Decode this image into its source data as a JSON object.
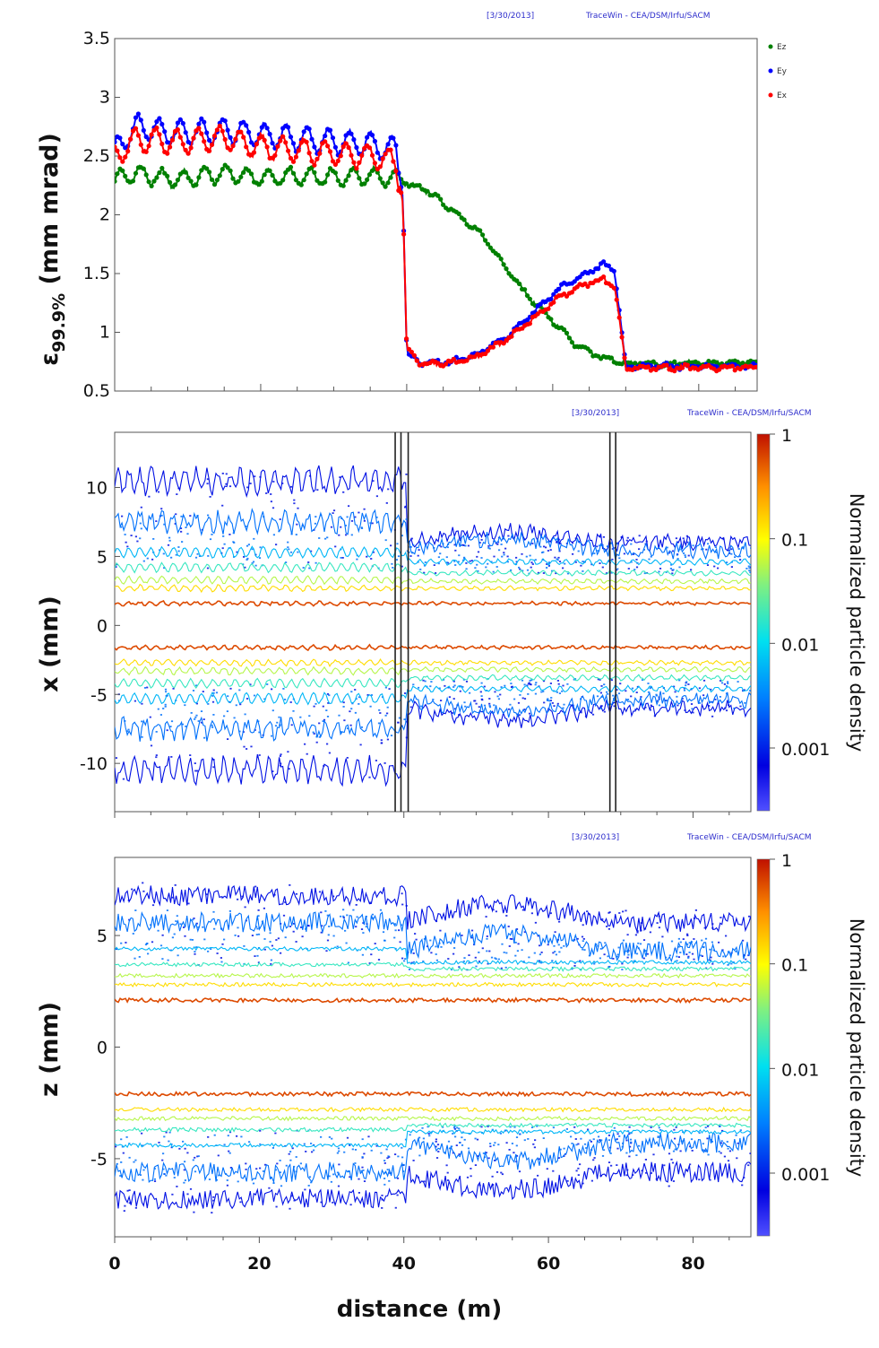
{
  "chart_data": [
    {
      "type": "scatter",
      "header_date": "[3/30/2013]",
      "header_source": "TraceWin - CEA/DSM/Irfu/SACM",
      "ylabel_main": "ε",
      "ylabel_sub": "99.9%",
      "ylabel_unit": " (mm mrad)",
      "ylim": [
        0.5,
        3.5
      ],
      "xlim": [
        0,
        88
      ],
      "yticks": [
        "3.5",
        "3",
        "2.5",
        "2",
        "1.5",
        "1",
        "0.5"
      ],
      "legend": [
        "Ez",
        "Ey",
        "Ex"
      ],
      "legend_placement": "top-right",
      "series": [
        {
          "name": "Ez",
          "color": "#008000",
          "x": [
            0,
            3,
            8,
            15,
            20,
            25,
            30,
            35,
            39,
            40,
            43,
            46,
            50,
            53,
            56,
            60,
            63,
            66,
            70,
            75,
            80,
            88
          ],
          "y": [
            2.3,
            2.35,
            2.3,
            2.35,
            2.32,
            2.33,
            2.32,
            2.33,
            2.3,
            2.27,
            2.2,
            2.05,
            1.85,
            1.6,
            1.35,
            1.1,
            0.9,
            0.8,
            0.74,
            0.73,
            0.74,
            0.74
          ]
        },
        {
          "name": "Ey",
          "color": "#0000ff",
          "x": [
            0,
            3,
            8,
            15,
            20,
            25,
            30,
            35,
            38.5,
            39.5,
            40,
            42,
            46,
            50,
            54,
            58,
            61,
            64,
            67,
            68,
            68.5,
            70,
            75,
            80,
            88
          ],
          "y": [
            2.55,
            2.75,
            2.7,
            2.72,
            2.68,
            2.65,
            2.62,
            2.6,
            2.55,
            2.15,
            0.82,
            0.74,
            0.75,
            0.82,
            0.98,
            1.2,
            1.38,
            1.48,
            1.58,
            1.55,
            1.52,
            0.71,
            0.71,
            0.71,
            0.71
          ]
        },
        {
          "name": "Ex",
          "color": "#ff0000",
          "x": [
            0,
            3,
            8,
            15,
            20,
            25,
            30,
            35,
            38.5,
            39.5,
            40,
            42,
            46,
            50,
            54,
            58,
            61,
            64,
            67,
            68,
            68.5,
            70,
            75,
            80,
            88
          ],
          "y": [
            2.5,
            2.65,
            2.62,
            2.65,
            2.58,
            2.55,
            2.52,
            2.5,
            2.45,
            2.1,
            0.85,
            0.73,
            0.74,
            0.8,
            0.95,
            1.15,
            1.3,
            1.4,
            1.45,
            1.4,
            1.38,
            0.7,
            0.7,
            0.7,
            0.7
          ]
        }
      ]
    },
    {
      "type": "heatmap",
      "header_date": "[3/30/2013]",
      "header_source": "TraceWin - CEA/DSM/Irfu/SACM",
      "ylabel": "x (mm)",
      "ylim": [
        -13.5,
        14
      ],
      "xlim": [
        0,
        88
      ],
      "yticks": [
        10,
        5,
        0,
        -5,
        -10
      ],
      "markers_x": [
        38.8,
        39.6,
        40.6,
        68.5,
        69.3
      ],
      "colorbar_label": "Normalized particle density",
      "colorbar_ticks": [
        "1",
        "0.1",
        "0.01",
        "0.001"
      ],
      "contour_levels": [
        {
          "density": 0.6,
          "envelope": [
            1.6,
            1.6
          ]
        },
        {
          "density": 0.15,
          "envelope": [
            2.7,
            2.7
          ]
        },
        {
          "density": 0.06,
          "envelope": [
            3.3,
            3.2
          ]
        },
        {
          "density": 0.02,
          "envelope": [
            4.2,
            3.8
          ]
        },
        {
          "density": 0.007,
          "envelope": [
            5.3,
            4.6
          ]
        },
        {
          "density": 0.003,
          "envelope": [
            7.5,
            5.4
          ]
        },
        {
          "density": 0.001,
          "envelope": [
            10.5,
            6.0
          ]
        }
      ]
    },
    {
      "type": "heatmap",
      "header_date": "[3/30/2013]",
      "header_source": "TraceWin - CEA/DSM/Irfu/SACM",
      "ylabel": "z (mm)",
      "xlabel": "distance (m)",
      "ylim": [
        -8.5,
        8.5
      ],
      "xlim": [
        0,
        88
      ],
      "yticks": [
        5,
        0,
        -5
      ],
      "xticks": [
        0,
        20,
        40,
        60,
        80
      ],
      "colorbar_label": "Normalized particle density",
      "colorbar_ticks": [
        "1",
        "0.1",
        "0.01",
        "0.001"
      ],
      "contour_levels": [
        {
          "density": 0.6,
          "envelope": [
            2.1,
            2.1
          ]
        },
        {
          "density": 0.15,
          "envelope": [
            2.8,
            2.8
          ]
        },
        {
          "density": 0.06,
          "envelope": [
            3.2,
            3.2
          ]
        },
        {
          "density": 0.02,
          "envelope": [
            3.7,
            3.5
          ]
        },
        {
          "density": 0.007,
          "envelope": [
            4.4,
            3.8
          ]
        },
        {
          "density": 0.003,
          "envelope": [
            5.6,
            4.3
          ]
        },
        {
          "density": 0.001,
          "envelope": [
            6.8,
            5.6
          ]
        }
      ]
    }
  ]
}
